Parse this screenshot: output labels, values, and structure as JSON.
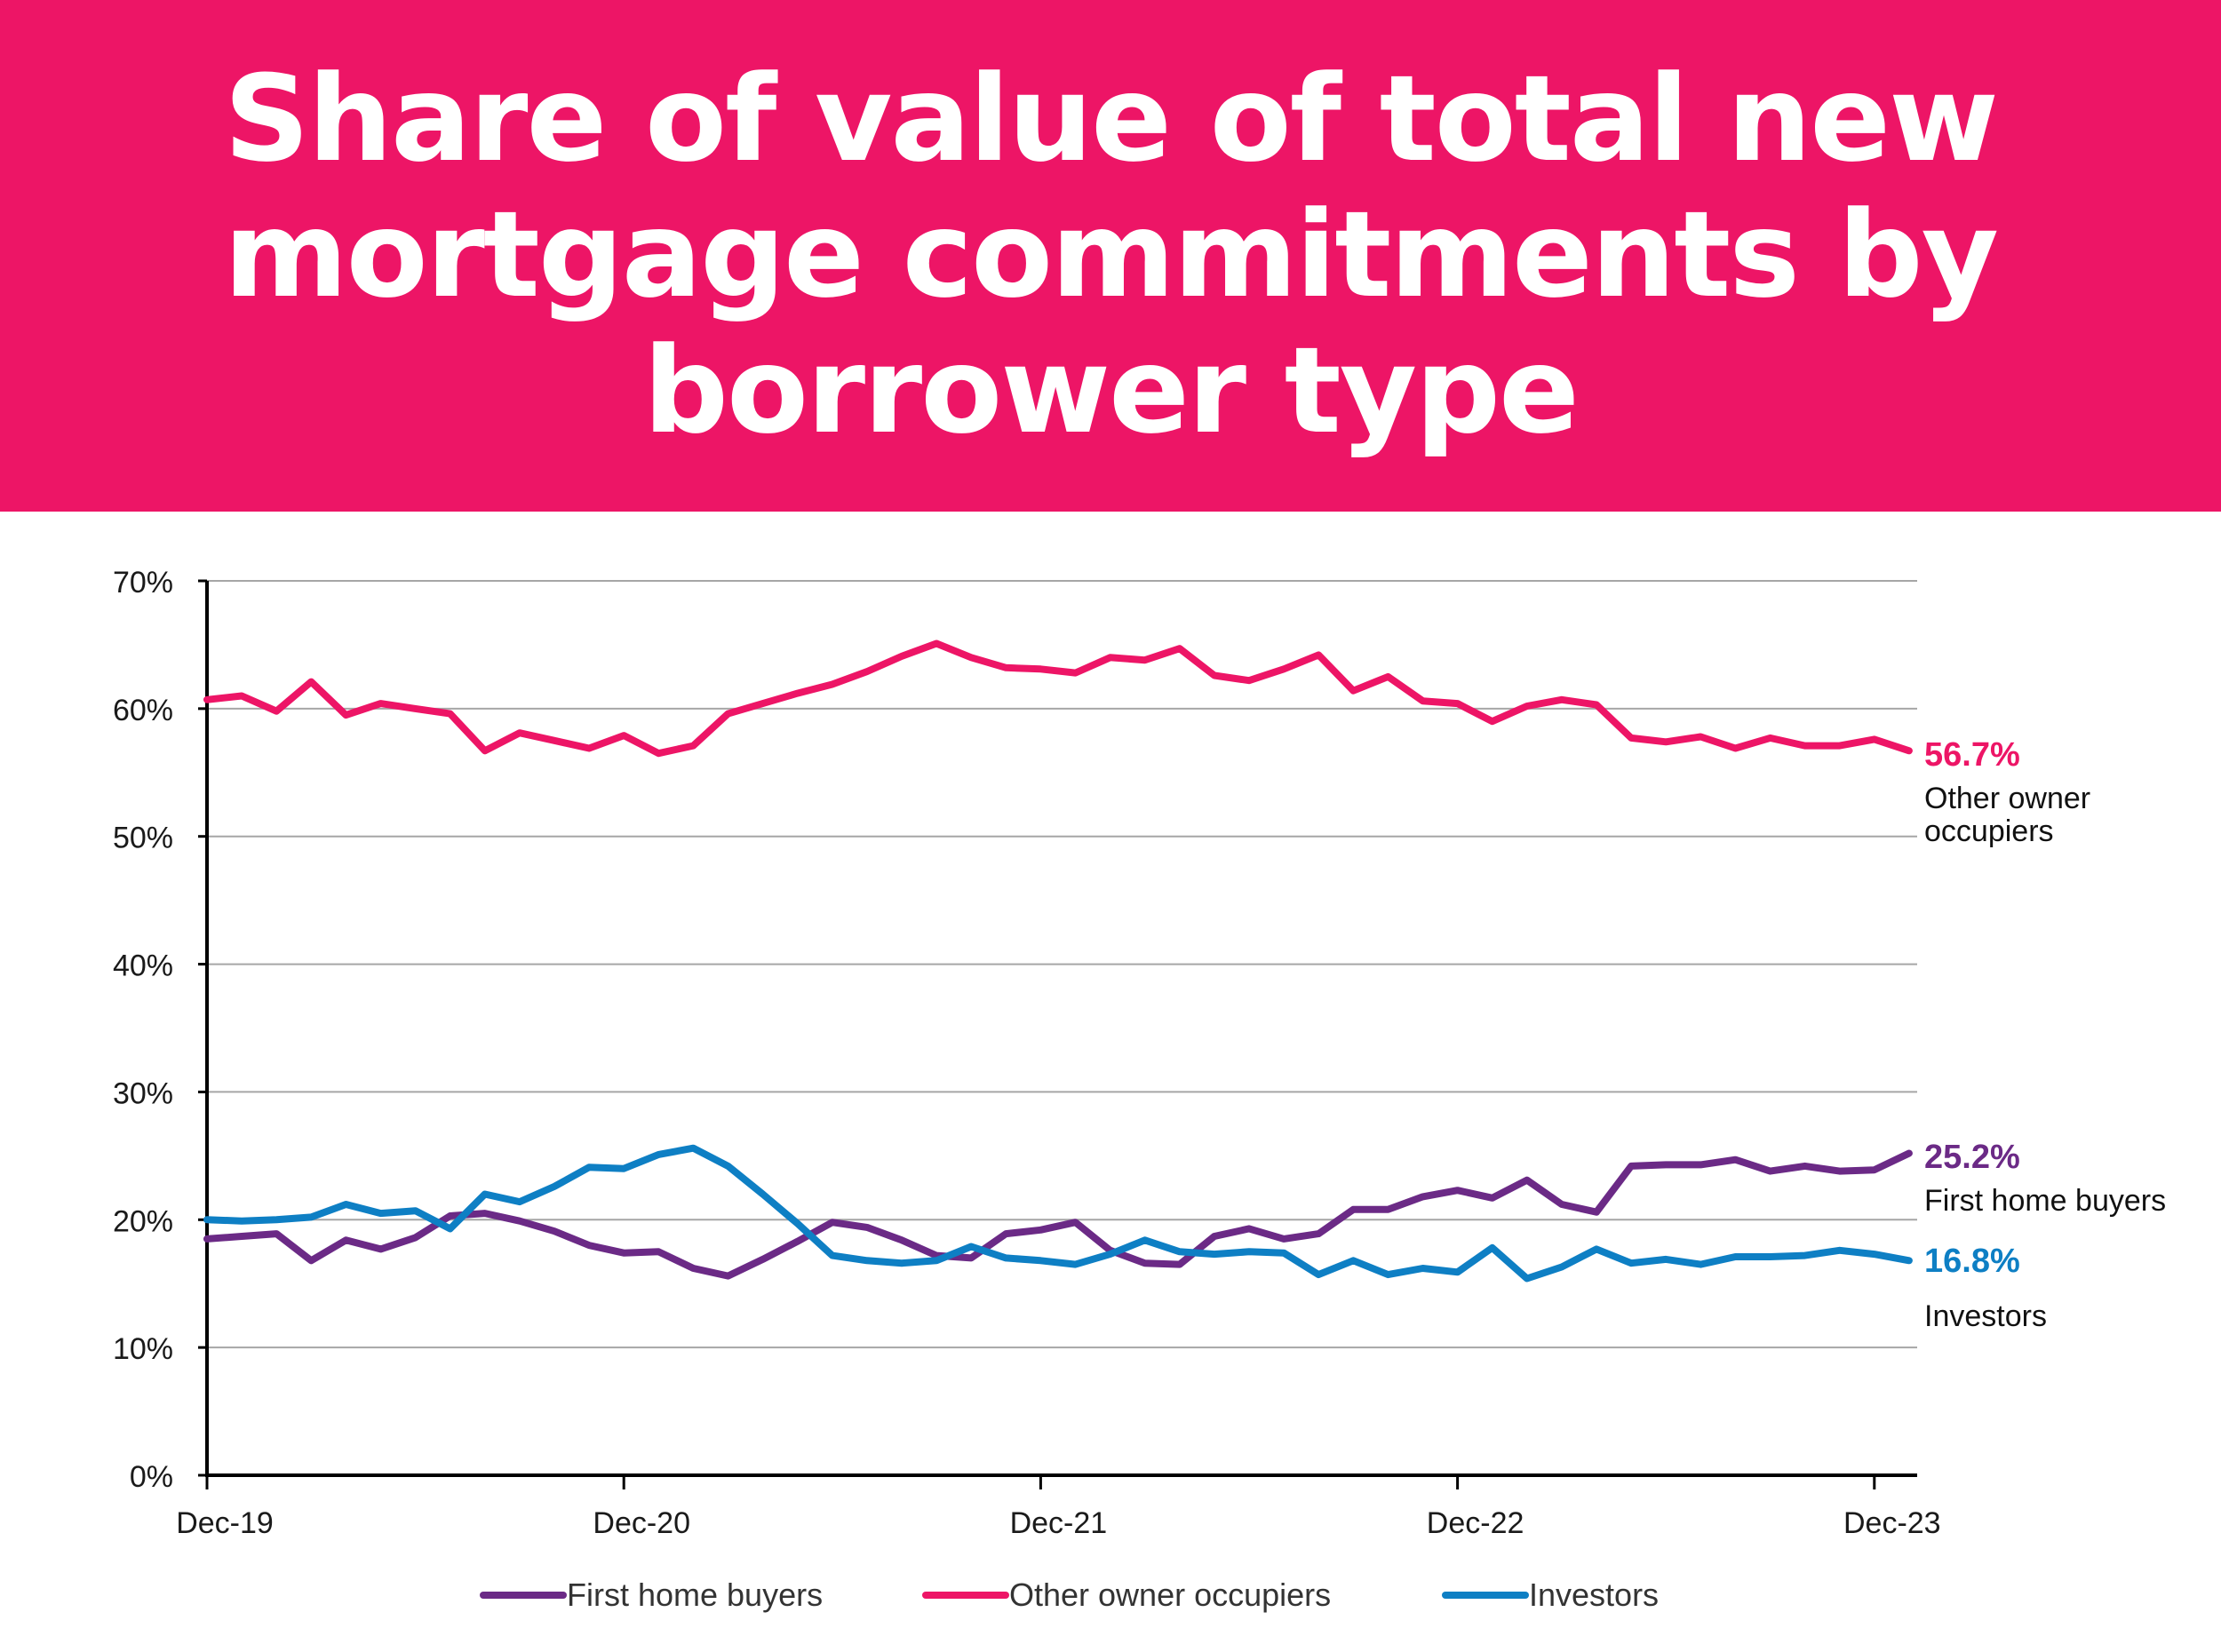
{
  "chart_data": {
    "type": "line",
    "title": "Share of value of total new mortgage commitments by borrower type",
    "xlabel": "",
    "ylabel": "",
    "ylim": [
      0,
      70
    ],
    "y_ticks": [
      "0%",
      "10%",
      "20%",
      "30%",
      "40%",
      "50%",
      "60%",
      "70%"
    ],
    "x_tick_labels": [
      "Dec-19",
      "Dec-20",
      "Dec-21",
      "Dec-22",
      "Dec-23"
    ],
    "x": [
      "Dec-19",
      "Jan-20",
      "Feb-20",
      "Mar-20",
      "Apr-20",
      "May-20",
      "Jun-20",
      "Jul-20",
      "Aug-20",
      "Sep-20",
      "Oct-20",
      "Nov-20",
      "Dec-20",
      "Jan-21",
      "Feb-21",
      "Mar-21",
      "Apr-21",
      "May-21",
      "Jun-21",
      "Jul-21",
      "Aug-21",
      "Sep-21",
      "Oct-21",
      "Nov-21",
      "Dec-21",
      "Jan-22",
      "Feb-22",
      "Mar-22",
      "Apr-22",
      "May-22",
      "Jun-22",
      "Jul-22",
      "Aug-22",
      "Sep-22",
      "Oct-22",
      "Nov-22",
      "Dec-22",
      "Jan-23",
      "Feb-23",
      "Mar-23",
      "Apr-23",
      "May-23",
      "Jun-23",
      "Jul-23",
      "Aug-23",
      "Sep-23",
      "Oct-23",
      "Nov-23",
      "Dec-23",
      "Jan-24"
    ],
    "grid": true,
    "legend_position": "bottom",
    "series": [
      {
        "name": "First home buyers",
        "color": "#6b2a86",
        "values": [
          18.5,
          18.7,
          18.9,
          16.8,
          18.4,
          17.7,
          18.6,
          20.3,
          20.5,
          19.9,
          19.1,
          18.0,
          17.4,
          17.5,
          16.2,
          15.6,
          16.9,
          18.3,
          19.8,
          19.4,
          18.4,
          17.2,
          17.0,
          18.9,
          19.2,
          19.8,
          17.6,
          16.6,
          16.5,
          18.7,
          19.3,
          18.5,
          18.9,
          20.8,
          20.8,
          21.8,
          22.3,
          21.7,
          23.1,
          21.2,
          20.6,
          24.2,
          24.3,
          24.3,
          24.7,
          23.8,
          24.2,
          23.8,
          23.9,
          25.2
        ],
        "end_label": "25.2%",
        "end_caption": "First home buyers"
      },
      {
        "name": "Other owner occupiers",
        "color": "#ed1566",
        "values": [
          60.7,
          61.0,
          59.8,
          62.1,
          59.5,
          60.4,
          60.0,
          59.6,
          56.7,
          58.1,
          57.5,
          56.9,
          57.9,
          56.5,
          57.1,
          59.6,
          60.4,
          61.2,
          61.9,
          62.9,
          64.1,
          65.1,
          64.0,
          63.2,
          63.1,
          62.8,
          64.0,
          63.8,
          64.7,
          62.6,
          62.2,
          63.1,
          64.2,
          61.4,
          62.5,
          60.6,
          60.4,
          59.0,
          60.2,
          60.7,
          60.3,
          57.7,
          57.4,
          57.8,
          56.9,
          57.7,
          57.1,
          57.1,
          57.6,
          56.7
        ],
        "end_label": "56.7%",
        "end_caption": "Other owner occupiers"
      },
      {
        "name": "Investors",
        "color": "#0e7fc4",
        "values": [
          20.0,
          19.9,
          20.0,
          20.2,
          21.2,
          20.5,
          20.7,
          19.3,
          22.0,
          21.4,
          22.6,
          24.1,
          24.0,
          25.1,
          25.6,
          24.2,
          22.0,
          19.7,
          17.2,
          16.8,
          16.6,
          16.8,
          17.9,
          17.0,
          16.8,
          16.5,
          17.3,
          18.4,
          17.5,
          17.3,
          17.5,
          17.4,
          15.7,
          16.8,
          15.7,
          16.2,
          15.9,
          17.8,
          15.4,
          16.3,
          17.7,
          16.6,
          16.9,
          16.5,
          17.1,
          17.1,
          17.2,
          17.6,
          17.3,
          16.8
        ],
        "end_label": "16.8%",
        "end_caption": "Investors"
      }
    ]
  }
}
